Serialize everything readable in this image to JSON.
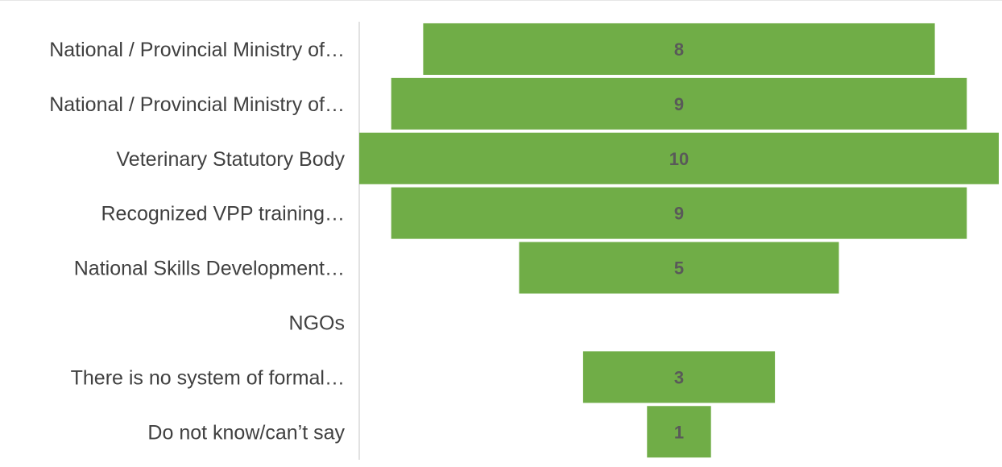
{
  "chart_data": {
    "type": "bar",
    "orientation": "horizontal",
    "style": "funnel",
    "categories": [
      "National / Provincial Ministry of…",
      "National / Provincial Ministry of…",
      "Veterinary Statutory Body",
      "Recognized VPP training…",
      "National Skills Development…",
      "NGOs",
      "There is no system of formal…",
      "Do not know/can’t say"
    ],
    "values": [
      8,
      9,
      10,
      9,
      5,
      0,
      3,
      1
    ],
    "value_labels": [
      "8",
      "9",
      "10",
      "9",
      "5",
      "",
      "3",
      "1"
    ],
    "xlim": [
      0,
      10
    ],
    "grid": false,
    "legend": "none",
    "title": "",
    "xlabel": "",
    "ylabel": ""
  },
  "colors": {
    "bar": "#70ad47",
    "axis": "#d9d9d9",
    "category_text": "#404040",
    "value_text": "#595959"
  }
}
